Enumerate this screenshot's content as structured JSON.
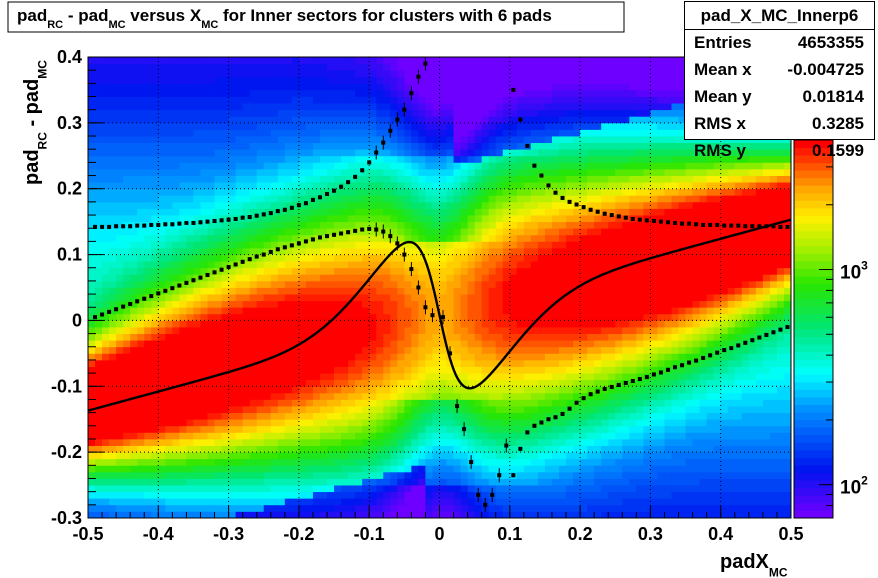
{
  "chart_data": {
    "type": "heatmap",
    "title_parts": [
      "pad",
      "RC",
      " - pad",
      "MC",
      " versus X",
      "MC",
      " for Inner sectors for clusters with 6 pads"
    ],
    "xlabel_parts": [
      "padX",
      "MC"
    ],
    "ylabel_parts": [
      "pad",
      "RC",
      " - pad",
      "MC"
    ],
    "xlim": [
      -0.5,
      0.5
    ],
    "ylim": [
      -0.3,
      0.4
    ],
    "x_ticks": [
      "-0.5",
      "-0.4",
      "-0.3",
      "-0.2",
      "-0.1",
      "0",
      "0.1",
      "0.2",
      "0.3",
      "0.4",
      "0.5"
    ],
    "y_ticks": [
      "-0.3",
      "-0.2",
      "-0.1",
      "0",
      "0.1",
      "0.2",
      "0.3",
      "0.4"
    ],
    "z_scale": "log",
    "z_range": [
      70,
      4000
    ],
    "z_ticks": [
      {
        "base": "10",
        "exp": "2",
        "value": 100
      },
      {
        "base": "10",
        "exp": "3",
        "value": 1000
      }
    ],
    "grid": true,
    "stats": {
      "name": "pad_X_MC_Innerp6",
      "entries": [
        {
          "label": "Entries",
          "value": "4653355"
        },
        {
          "label": "Mean x",
          "value": "-0.004725"
        },
        {
          "label": "Mean y",
          "value": "0.01814"
        },
        {
          "label": "RMS x",
          "value": "0.3285"
        },
        {
          "label": "RMS y",
          "value": "0.1599"
        }
      ]
    },
    "mean_profile": {
      "x": [
        -0.49,
        -0.48,
        -0.47,
        -0.46,
        -0.45,
        -0.44,
        -0.43,
        -0.42,
        -0.41,
        -0.4,
        -0.39,
        -0.38,
        -0.37,
        -0.36,
        -0.35,
        -0.34,
        -0.33,
        -0.32,
        -0.31,
        -0.3,
        -0.29,
        -0.28,
        -0.27,
        -0.26,
        -0.25,
        -0.24,
        -0.23,
        -0.22,
        -0.21,
        -0.2,
        -0.19,
        -0.18,
        -0.17,
        -0.16,
        -0.15,
        -0.14,
        -0.13,
        -0.12,
        -0.11,
        -0.1,
        -0.09,
        -0.08,
        -0.07,
        -0.06,
        -0.05,
        -0.04,
        -0.03,
        -0.02,
        -0.01,
        0.005,
        0.015,
        0.025,
        0.035,
        0.045,
        0.055,
        0.065,
        0.075,
        0.085,
        0.095,
        0.105,
        0.115,
        0.125,
        0.135,
        0.145,
        0.155,
        0.165,
        0.175,
        0.185,
        0.195,
        0.205,
        0.215,
        0.225,
        0.235,
        0.245,
        0.255,
        0.265,
        0.275,
        0.285,
        0.295,
        0.305,
        0.315,
        0.325,
        0.335,
        0.345,
        0.355,
        0.365,
        0.375,
        0.385,
        0.395,
        0.405,
        0.415,
        0.425,
        0.435,
        0.445,
        0.455,
        0.465,
        0.475,
        0.485,
        0.495
      ],
      "y": [
        0.005,
        0.009,
        0.013,
        0.017,
        0.021,
        0.025,
        0.029,
        0.033,
        0.037,
        0.041,
        0.045,
        0.049,
        0.053,
        0.057,
        0.061,
        0.065,
        0.069,
        0.073,
        0.077,
        0.081,
        0.085,
        0.089,
        0.093,
        0.097,
        0.1,
        0.104,
        0.108,
        0.111,
        0.114,
        0.117,
        0.12,
        0.123,
        0.126,
        0.128,
        0.13,
        0.132,
        0.134,
        0.136,
        0.138,
        0.139,
        0.138,
        0.135,
        0.128,
        0.117,
        0.1,
        0.078,
        0.05,
        0.02,
        0.008,
        0.005,
        -0.05,
        -0.13,
        -0.165,
        -0.215,
        -0.265,
        -0.28,
        -0.265,
        -0.235,
        -0.19,
        -0.235,
        -0.195,
        -0.17,
        -0.16,
        -0.155,
        -0.15,
        -0.147,
        -0.142,
        -0.134,
        -0.125,
        -0.118,
        -0.112,
        -0.108,
        -0.104,
        -0.101,
        -0.098,
        -0.095,
        -0.092,
        -0.089,
        -0.086,
        -0.082,
        -0.079,
        -0.075,
        -0.071,
        -0.068,
        -0.064,
        -0.061,
        -0.057,
        -0.053,
        -0.049,
        -0.045,
        -0.042,
        -0.038,
        -0.034,
        -0.03,
        -0.026,
        -0.022,
        -0.018,
        -0.014,
        -0.01
      ]
    },
    "rms_profile": {
      "x": [
        -0.49,
        -0.48,
        -0.47,
        -0.46,
        -0.45,
        -0.44,
        -0.43,
        -0.42,
        -0.41,
        -0.4,
        -0.39,
        -0.38,
        -0.37,
        -0.36,
        -0.35,
        -0.34,
        -0.33,
        -0.32,
        -0.31,
        -0.3,
        -0.29,
        -0.28,
        -0.27,
        -0.26,
        -0.25,
        -0.24,
        -0.23,
        -0.22,
        -0.21,
        -0.2,
        -0.19,
        -0.18,
        -0.17,
        -0.16,
        -0.15,
        -0.14,
        -0.13,
        -0.12,
        -0.11,
        -0.1,
        -0.09,
        -0.08,
        -0.07,
        -0.06,
        -0.05,
        -0.04,
        -0.03,
        -0.02,
        0.105,
        0.115,
        0.125,
        0.135,
        0.145,
        0.155,
        0.165,
        0.175,
        0.185,
        0.195,
        0.205,
        0.215,
        0.225,
        0.235,
        0.245,
        0.255,
        0.265,
        0.275,
        0.285,
        0.295,
        0.305,
        0.315,
        0.325,
        0.335,
        0.345,
        0.355,
        0.365,
        0.375,
        0.385,
        0.395,
        0.405,
        0.415,
        0.425,
        0.435,
        0.445,
        0.455,
        0.465,
        0.475,
        0.485,
        0.495
      ],
      "y": [
        0.142,
        0.142,
        0.142,
        0.143,
        0.143,
        0.143,
        0.144,
        0.144,
        0.145,
        0.145,
        0.146,
        0.146,
        0.147,
        0.148,
        0.148,
        0.149,
        0.15,
        0.151,
        0.152,
        0.153,
        0.154,
        0.156,
        0.157,
        0.159,
        0.161,
        0.163,
        0.166,
        0.168,
        0.171,
        0.175,
        0.178,
        0.183,
        0.187,
        0.192,
        0.197,
        0.203,
        0.21,
        0.218,
        0.228,
        0.24,
        0.255,
        0.27,
        0.288,
        0.305,
        0.32,
        0.345,
        0.37,
        0.39,
        0.35,
        0.305,
        0.265,
        0.235,
        0.22,
        0.205,
        0.194,
        0.186,
        0.18,
        0.176,
        0.172,
        0.168,
        0.165,
        0.162,
        0.16,
        0.158,
        0.156,
        0.154,
        0.153,
        0.152,
        0.151,
        0.15,
        0.149,
        0.148,
        0.147,
        0.147,
        0.146,
        0.145,
        0.145,
        0.145,
        0.144,
        0.144,
        0.144,
        0.143,
        0.143,
        0.143,
        0.143,
        0.143,
        0.142,
        0.142
      ]
    }
  }
}
